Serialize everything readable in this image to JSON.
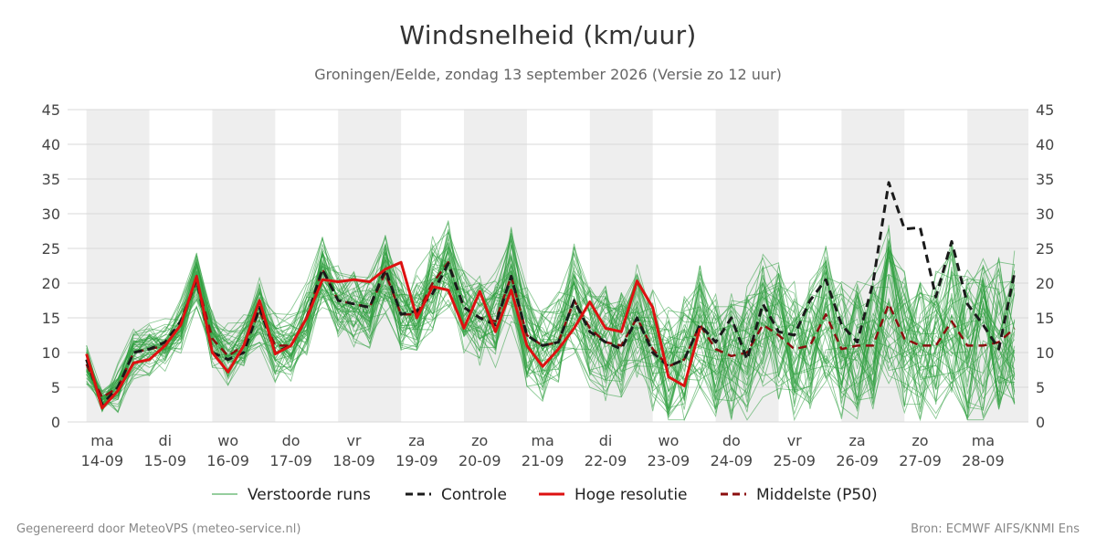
{
  "chart_data": {
    "type": "line",
    "title": "Windsnelheid (km/uur)",
    "subtitle": "Groningen/Eelde, zondag 13 september 2026 (Versie zo 12 uur)",
    "ylim": [
      0,
      45
    ],
    "yticks": [
      0,
      5,
      10,
      15,
      20,
      25,
      30,
      35,
      40,
      45
    ],
    "x_tick_labels": [
      {
        "day": "ma",
        "date": "14-09"
      },
      {
        "day": "di",
        "date": "15-09"
      },
      {
        "day": "wo",
        "date": "16-09"
      },
      {
        "day": "do",
        "date": "17-09"
      },
      {
        "day": "vr",
        "date": "18-09"
      },
      {
        "day": "za",
        "date": "19-09"
      },
      {
        "day": "zo",
        "date": "20-09"
      },
      {
        "day": "ma",
        "date": "21-09"
      },
      {
        "day": "di",
        "date": "22-09"
      },
      {
        "day": "wo",
        "date": "23-09"
      },
      {
        "day": "do",
        "date": "24-09"
      },
      {
        "day": "vr",
        "date": "25-09"
      },
      {
        "day": "za",
        "date": "26-09"
      },
      {
        "day": "zo",
        "date": "27-09"
      },
      {
        "day": "ma",
        "date": "28-09"
      }
    ],
    "grid": true,
    "legend_position": "bottom",
    "x_days": [
      13.75,
      14,
      14.25,
      14.5,
      14.75,
      15,
      15.25,
      15.5,
      15.75,
      16,
      16.25,
      16.5,
      16.75,
      17,
      17.25,
      17.5,
      17.75,
      18,
      18.25,
      18.5,
      18.75,
      19,
      19.25,
      19.5,
      19.75,
      20,
      20.25,
      20.5,
      20.75,
      21,
      21.25,
      21.5,
      21.75,
      22,
      22.25,
      22.5,
      22.75,
      23,
      23.25,
      23.5,
      23.75,
      24,
      24.25,
      24.5,
      24.75,
      25,
      25.25,
      25.5,
      25.75,
      26,
      26.25,
      26.5,
      26.75,
      27,
      27.25,
      27.5,
      27.75,
      28,
      28.25,
      28.5
    ],
    "series": [
      {
        "name": "Controle",
        "color": "#1a1a1a",
        "dash": "dashed",
        "values": [
          9,
          2.5,
          5,
          10,
          10.5,
          11.5,
          14.5,
          20.5,
          10,
          9,
          10,
          16.5,
          10,
          11,
          15,
          22,
          17.5,
          17,
          16.5,
          22,
          15.5,
          16,
          18.5,
          22.8,
          16.5,
          15,
          14,
          21,
          12.5,
          11,
          11.5,
          17.5,
          13,
          11.5,
          10.5,
          15,
          10,
          8,
          9,
          14,
          11.5,
          15,
          9,
          17,
          13,
          12.5,
          17.5,
          20.5,
          14,
          11.5,
          20,
          34.5,
          27.8,
          28,
          18,
          26,
          17,
          14,
          10.5,
          21.5
        ]
      },
      {
        "name": "Hoge resolutie",
        "color": "#dd1111",
        "dash": "solid",
        "values": [
          9.8,
          2,
          4.5,
          8.5,
          9,
          11,
          14,
          21,
          10,
          7.2,
          11,
          17.5,
          9.8,
          11,
          15,
          20.5,
          20.2,
          20.5,
          20.2,
          22,
          23,
          15,
          19.5,
          19,
          13.5,
          18.8,
          13,
          19,
          11,
          8,
          10.5,
          13.5,
          17.3,
          13.5,
          13,
          20.3,
          16.5,
          6.5,
          5.2,
          13.5
        ]
      },
      {
        "name": "Middelste (P50)",
        "color": "#8b0e0e",
        "dash": "dashed",
        "values": [
          8.3,
          3.5,
          5,
          10,
          10.5,
          11,
          14,
          20.5,
          12,
          9.5,
          11,
          16,
          11,
          11,
          15,
          22,
          17.5,
          17,
          16.5,
          21.5,
          15.5,
          15.5,
          20,
          23,
          16.5,
          15,
          14.5,
          21,
          12.5,
          11,
          11.5,
          17.5,
          13.5,
          11.5,
          11,
          15,
          10.5,
          8,
          9,
          14,
          10.5,
          9.5,
          10,
          14,
          12.5,
          10.5,
          11,
          15.5,
          10.5,
          11,
          11,
          17,
          12,
          11,
          11,
          14.5,
          11,
          11,
          11.5,
          13.5
        ]
      }
    ],
    "ensemble": {
      "name": "Verstoorde runs",
      "color": "#2e9e3e",
      "member_count": 50
    }
  },
  "legend": {
    "items": [
      {
        "label": "Verstoorde runs",
        "color": "#2e9e3e",
        "style": "thin-solid"
      },
      {
        "label": "Controle",
        "color": "#1a1a1a",
        "style": "dashed"
      },
      {
        "label": "Hoge resolutie",
        "color": "#dd1111",
        "style": "solid"
      },
      {
        "label": "Middelste (P50)",
        "color": "#8b0e0e",
        "style": "dashed"
      }
    ]
  },
  "footer": {
    "left": "Gegenereerd door MeteoVPS (meteo-service.nl)",
    "right": "Bron: ECMWF AIFS/KNMI Ens"
  },
  "colors": {
    "night_band": "#eeeeee",
    "grid": "#d8d8d8"
  }
}
